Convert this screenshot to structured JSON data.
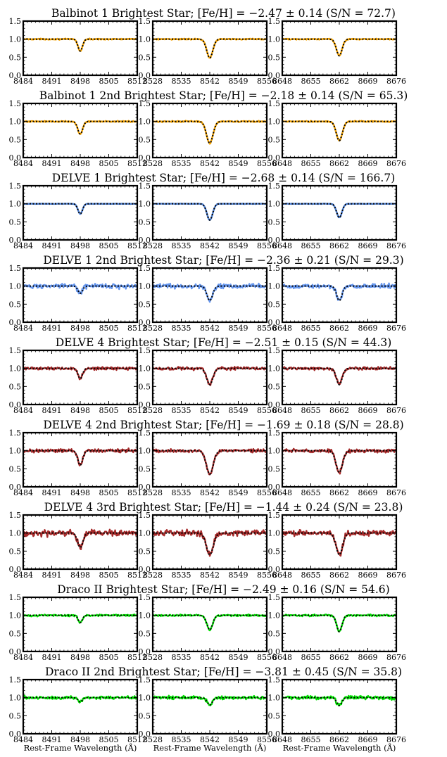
{
  "figure": {
    "xlabel": "Rest-Frame Wavelength (Å)",
    "yticks": [
      0.0,
      0.5,
      1.0,
      1.5
    ],
    "ylim": [
      0.0,
      1.5
    ]
  },
  "chart_data": {
    "type": "line",
    "panel_windows": [
      {
        "xlim": [
          8484,
          8512
        ],
        "xticks": [
          8484,
          8491,
          8498,
          8505,
          8512
        ],
        "line_center": 8498
      },
      {
        "xlim": [
          8528,
          8556
        ],
        "xticks": [
          8528,
          8535,
          8542,
          8549,
          8556
        ],
        "line_center": 8542
      },
      {
        "xlim": [
          8648,
          8676
        ],
        "xticks": [
          8648,
          8655,
          8662,
          8669,
          8676
        ],
        "line_center": 8662
      }
    ],
    "series_styles": {
      "observed": "solid colored line",
      "model": "black dotted line"
    },
    "rows": [
      {
        "title": "Balbinot 1 Brightest Star; [Fe/H] = −2.47 ± 0.14 (S/N = 72.7)",
        "color": "#f5a300",
        "depths": [
          0.33,
          0.52,
          0.46
        ],
        "widths": [
          0.55,
          0.75,
          0.7
        ],
        "noise": 0.012,
        "xtick_labels": [
          true,
          false,
          false
        ]
      },
      {
        "title": "Balbinot 1 2nd Brightest Star; [Fe/H] = −2.18 ± 0.14 (S/N = 65.3)",
        "color": "#f5a300",
        "depths": [
          0.35,
          0.6,
          0.53
        ],
        "widths": [
          0.6,
          0.8,
          0.75
        ],
        "noise": 0.014,
        "xtick_labels": [
          true,
          true,
          true
        ]
      },
      {
        "title": "DELVE 1 Brightest Star; [Fe/H] = −2.68 ± 0.14 (S/N = 166.7)",
        "color": "#4a7fd6",
        "depths": [
          0.28,
          0.45,
          0.38
        ],
        "widths": [
          0.55,
          0.7,
          0.65
        ],
        "noise": 0.005,
        "xtick_labels": [
          true,
          true,
          true
        ]
      },
      {
        "title": "DELVE 1 2nd Brightest Star; [Fe/H] = −2.36 ± 0.21 (S/N = 29.3)",
        "color": "#6495ed",
        "depths": [
          0.2,
          0.4,
          0.4
        ],
        "widths": [
          0.55,
          0.7,
          0.65
        ],
        "noise": 0.05,
        "xtick_labels": [
          true,
          true,
          true
        ]
      },
      {
        "title": "DELVE 4 Brightest Star; [Fe/H] = −2.51 ± 0.15 (S/N = 44.3)",
        "color": "#a52a2a",
        "depths": [
          0.28,
          0.45,
          0.45
        ],
        "widths": [
          0.55,
          0.75,
          0.7
        ],
        "noise": 0.035,
        "xtick_labels": [
          true,
          true,
          true
        ]
      },
      {
        "title": "DELVE 4 2nd Brightest Star; [Fe/H] = −1.69 ± 0.18 (S/N = 28.8)",
        "color": "#a52a2a",
        "depths": [
          0.4,
          0.65,
          0.6
        ],
        "widths": [
          0.6,
          0.85,
          0.8
        ],
        "noise": 0.04,
        "xtick_labels": [
          true,
          true,
          true
        ]
      },
      {
        "title": "DELVE 4 3rd Brightest Star; [Fe/H] = −1.44 ± 0.24 (S/N = 23.8)",
        "color": "#a52a2a",
        "depths": [
          0.4,
          0.6,
          0.6
        ],
        "widths": [
          0.65,
          0.85,
          0.8
        ],
        "noise": 0.065,
        "xtick_labels": [
          true,
          true,
          true
        ]
      },
      {
        "title": "Draco II Brightest Star; [Fe/H] = −2.49 ± 0.16 (S/N = 54.6)",
        "color": "#00e000",
        "depths": [
          0.2,
          0.4,
          0.45
        ],
        "widths": [
          0.5,
          0.7,
          0.65
        ],
        "noise": 0.02,
        "xtick_labels": [
          true,
          true,
          true
        ]
      },
      {
        "title": "Draco II 2nd Brightest Star; [Fe/H] = −3.81 ± 0.45 (S/N = 35.8)",
        "color": "#00e000",
        "depths": [
          0.12,
          0.2,
          0.22
        ],
        "widths": [
          0.5,
          0.65,
          0.6
        ],
        "noise": 0.04,
        "xtick_labels": [
          true,
          true,
          true
        ]
      }
    ]
  }
}
